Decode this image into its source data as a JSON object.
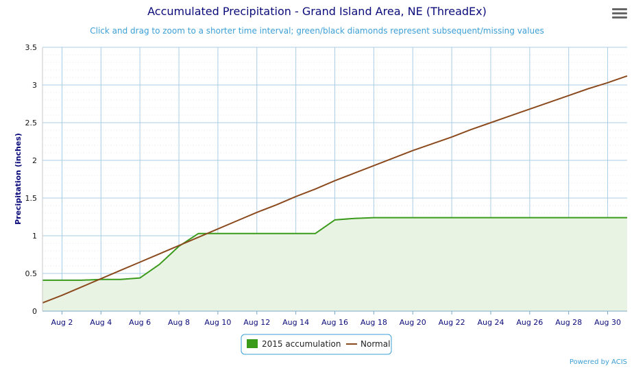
{
  "menu": {
    "icon": "hamburger-menu-icon"
  },
  "credit": "Powered by ACIS",
  "chart_data": {
    "type": "line",
    "title": "Accumulated Precipitation - Grand Island Area, NE (ThreadEx)",
    "subtitle": "Click and drag to zoom to a shorter time interval; green/black diamonds represent subsequent/missing values",
    "ylabel": "Precipitation (inches)",
    "xlabel": "",
    "ylim": [
      0,
      3.5
    ],
    "yticks": [
      "0",
      "0.5",
      "1",
      "1.5",
      "2",
      "2.5",
      "3",
      "3.5"
    ],
    "xlim": [
      1,
      31
    ],
    "xticks": [
      "Aug 2",
      "Aug 4",
      "Aug 6",
      "Aug 8",
      "Aug 10",
      "Aug 12",
      "Aug 14",
      "Aug 16",
      "Aug 18",
      "Aug 20",
      "Aug 22",
      "Aug 24",
      "Aug 26",
      "Aug 28",
      "Aug 30"
    ],
    "xtick_days": [
      2,
      4,
      6,
      8,
      10,
      12,
      14,
      16,
      18,
      20,
      22,
      24,
      26,
      28,
      30
    ],
    "grid": true,
    "legend_position": "bottom-center",
    "series": [
      {
        "name": "2015 accumulation",
        "color": "#3a9a1a",
        "fill": "#e9f3e3",
        "area": true,
        "x": [
          1,
          2,
          3,
          4,
          5,
          6,
          7,
          8,
          9,
          10,
          11,
          12,
          13,
          14,
          15,
          16,
          17,
          18,
          19,
          20,
          21,
          22,
          23,
          24,
          25,
          26,
          27,
          28,
          29,
          30,
          31
        ],
        "values": [
          0.41,
          0.41,
          0.41,
          0.42,
          0.42,
          0.44,
          0.62,
          0.86,
          1.03,
          1.03,
          1.03,
          1.03,
          1.03,
          1.03,
          1.03,
          1.21,
          1.23,
          1.24,
          1.24,
          1.24,
          1.24,
          1.24,
          1.24,
          1.24,
          1.24,
          1.24,
          1.24,
          1.24,
          1.24,
          1.24,
          1.24
        ]
      },
      {
        "name": "Normal",
        "color": "#8b4a1e",
        "area": false,
        "x": [
          1,
          2,
          3,
          4,
          5,
          6,
          7,
          8,
          9,
          10,
          11,
          12,
          13,
          14,
          15,
          16,
          17,
          18,
          19,
          20,
          21,
          22,
          23,
          24,
          25,
          26,
          27,
          28,
          29,
          30,
          31
        ],
        "values": [
          0.11,
          0.21,
          0.32,
          0.43,
          0.54,
          0.65,
          0.76,
          0.87,
          0.98,
          1.09,
          1.2,
          1.31,
          1.41,
          1.52,
          1.62,
          1.73,
          1.83,
          1.93,
          2.03,
          2.13,
          2.22,
          2.31,
          2.41,
          2.5,
          2.59,
          2.68,
          2.77,
          2.86,
          2.95,
          3.03,
          3.12
        ]
      }
    ]
  }
}
